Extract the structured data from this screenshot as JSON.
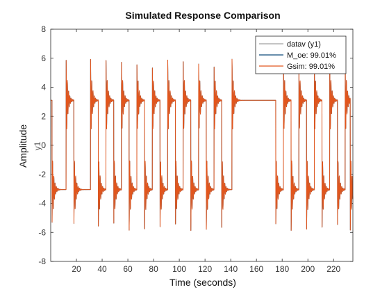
{
  "chart_data": {
    "type": "line",
    "title": "Simulated Response Comparison",
    "xlabel": "Time (seconds)",
    "ylabel": "Amplitude",
    "channel_label": "y1",
    "xlim": [
      0,
      235
    ],
    "ylim": [
      -8,
      8
    ],
    "xticks": [
      20,
      40,
      60,
      80,
      100,
      120,
      140,
      160,
      180,
      200,
      220
    ],
    "yticks": [
      -8,
      -6,
      -4,
      -2,
      0,
      2,
      4,
      6,
      8
    ],
    "grid": false,
    "legend_position": "top-right",
    "legend": [
      "datav (y1)",
      "M_oe: 99.01%",
      "Gsim: 99.01%"
    ],
    "levels": {
      "high": 3.1,
      "low": -3.05
    },
    "switch_times": [
      1,
      12,
      18,
      31,
      37,
      43,
      49,
      55,
      61,
      67,
      73,
      79,
      85,
      91,
      97,
      103,
      109,
      115,
      121,
      127,
      133,
      141,
      175,
      181,
      187,
      193,
      199,
      205,
      211,
      217,
      223,
      229,
      233
    ],
    "initial_level": "high",
    "series": [
      {
        "name": "datav (y1)",
        "color": "#a0a0a0"
      },
      {
        "name": "M_oe: 99.01%",
        "color": "#0d4a7a"
      },
      {
        "name": "Gsim: 99.01%",
        "color": "#e2561d"
      }
    ]
  }
}
